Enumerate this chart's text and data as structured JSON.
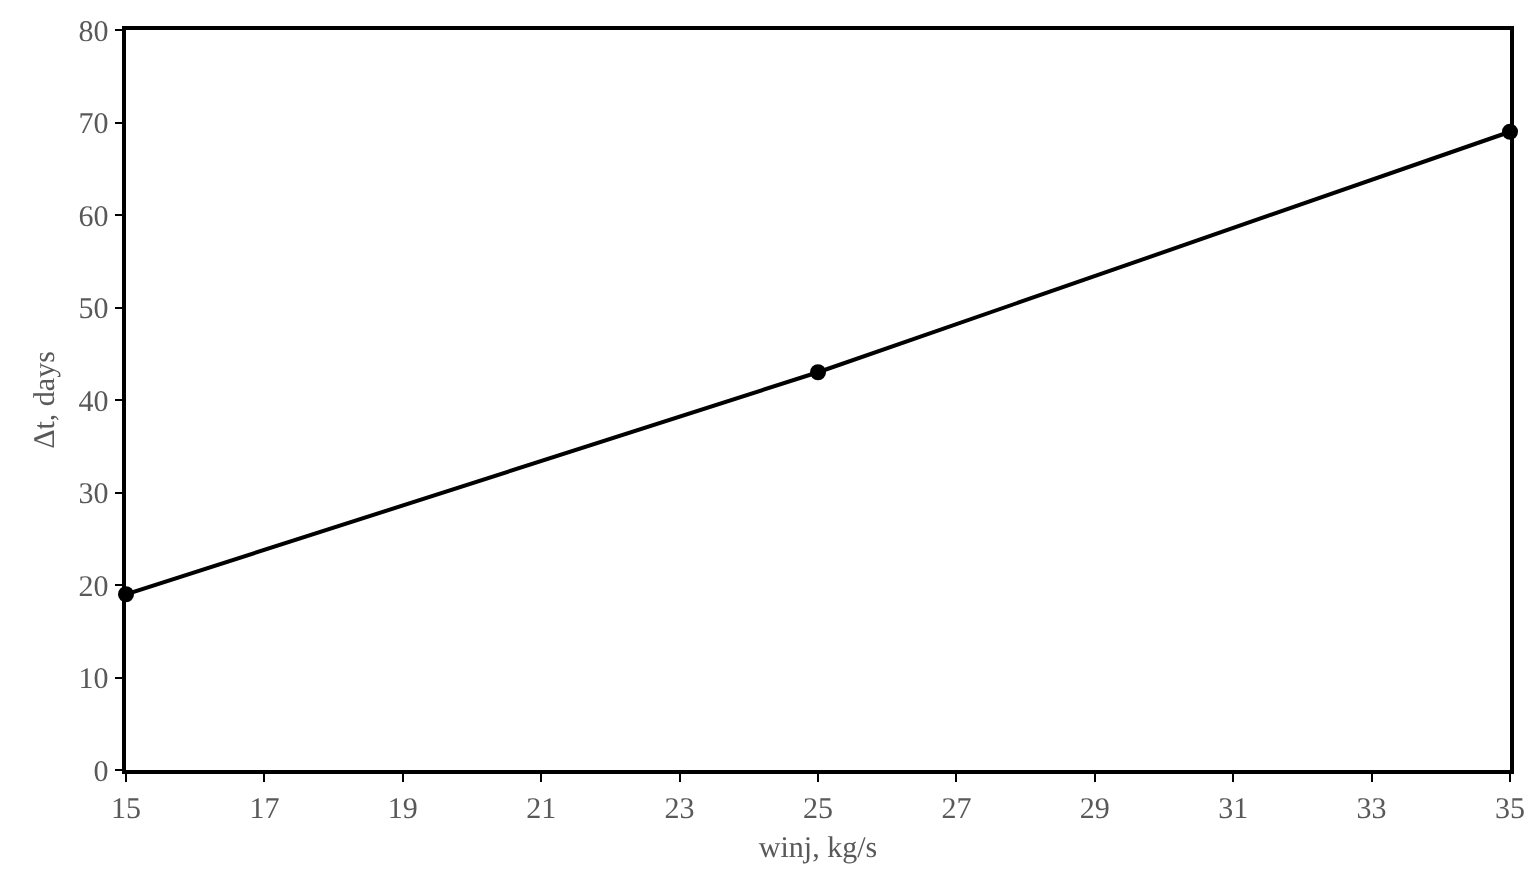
{
  "chart_data": {
    "type": "line",
    "xlabel": "winj, kg/s",
    "ylabel": "Δt, days",
    "x": [
      15,
      25,
      35
    ],
    "series": [
      {
        "color": "#000000",
        "values": [
          19,
          43,
          69
        ]
      }
    ],
    "xlim": [
      15,
      35
    ],
    "xticks": [
      15,
      17,
      19,
      21,
      23,
      25,
      27,
      29,
      31,
      33,
      35
    ],
    "ylim": [
      0,
      80
    ],
    "yticks": [
      0,
      10,
      20,
      30,
      40,
      50,
      60,
      70,
      80
    ],
    "grid": false,
    "legend": false,
    "marker": "circle",
    "line_style": "solid"
  }
}
